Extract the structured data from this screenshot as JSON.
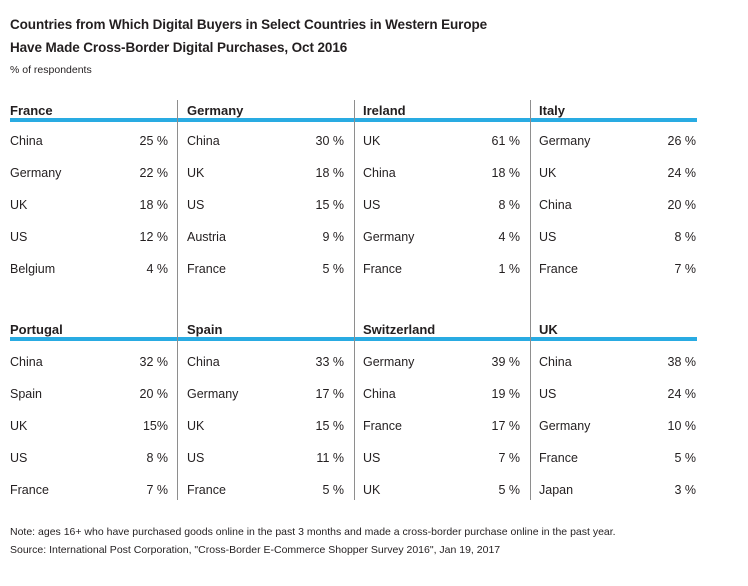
{
  "header": {
    "title_line1": "Countries from Which Digital Buyers in Select Countries in Western Europe",
    "title_line2": "Have Made Cross-Border Digital Purchases, Oct 2016",
    "subtitle": "% of respondents"
  },
  "colors": {
    "accent_blue": "#29abe2",
    "divider_gray": "#8e8e8e",
    "text": "#231f20"
  },
  "chart_data": {
    "type": "table",
    "title": "Countries from Which Digital Buyers in Select Countries in Western Europe Have Made Cross-Border Digital Purchases, Oct 2016",
    "unit": "% of respondents",
    "layout": "2 rows x 4 panels, blue rule under panel headers, gray vertical dividers between panels",
    "panels": [
      {
        "market": "France",
        "rows": [
          {
            "country": "China",
            "value": 25,
            "label": "25 %"
          },
          {
            "country": "Germany",
            "value": 22,
            "label": "22 %"
          },
          {
            "country": "UK",
            "value": 18,
            "label": "18 %"
          },
          {
            "country": "US",
            "value": 12,
            "label": "12 %"
          },
          {
            "country": "Belgium",
            "value": 4,
            "label": "4 %"
          }
        ]
      },
      {
        "market": "Germany",
        "rows": [
          {
            "country": "China",
            "value": 30,
            "label": "30 %"
          },
          {
            "country": "UK",
            "value": 18,
            "label": "18 %"
          },
          {
            "country": "US",
            "value": 15,
            "label": "15 %"
          },
          {
            "country": "Austria",
            "value": 9,
            "label": "9 %"
          },
          {
            "country": "France",
            "value": 5,
            "label": "5 %"
          }
        ]
      },
      {
        "market": "Ireland",
        "rows": [
          {
            "country": "UK",
            "value": 61,
            "label": "61 %"
          },
          {
            "country": "China",
            "value": 18,
            "label": "18 %"
          },
          {
            "country": "US",
            "value": 8,
            "label": "8 %"
          },
          {
            "country": "Germany",
            "value": 4,
            "label": "4 %"
          },
          {
            "country": "France",
            "value": 1,
            "label": "1 %"
          }
        ]
      },
      {
        "market": "Italy",
        "rows": [
          {
            "country": "Germany",
            "value": 26,
            "label": "26 %"
          },
          {
            "country": "UK",
            "value": 24,
            "label": "24 %"
          },
          {
            "country": "China",
            "value": 20,
            "label": "20 %"
          },
          {
            "country": "US",
            "value": 8,
            "label": "8 %"
          },
          {
            "country": "France",
            "value": 7,
            "label": "7 %"
          }
        ]
      },
      {
        "market": "Portugal",
        "rows": [
          {
            "country": "China",
            "value": 32,
            "label": "32 %"
          },
          {
            "country": "Spain",
            "value": 20,
            "label": "20 %"
          },
          {
            "country": "UK",
            "value": 15,
            "label": "15%"
          },
          {
            "country": "US",
            "value": 8,
            "label": "8 %"
          },
          {
            "country": "France",
            "value": 7,
            "label": "7 %"
          }
        ]
      },
      {
        "market": "Spain",
        "rows": [
          {
            "country": "China",
            "value": 33,
            "label": "33 %"
          },
          {
            "country": "Germany",
            "value": 17,
            "label": "17 %"
          },
          {
            "country": "UK",
            "value": 15,
            "label": "15 %"
          },
          {
            "country": "US",
            "value": 11,
            "label": "11 %"
          },
          {
            "country": "France",
            "value": 5,
            "label": "5 %"
          }
        ]
      },
      {
        "market": "Switzerland",
        "rows": [
          {
            "country": "Germany",
            "value": 39,
            "label": "39 %"
          },
          {
            "country": "China",
            "value": 19,
            "label": "19 %"
          },
          {
            "country": "France",
            "value": 17,
            "label": "17 %"
          },
          {
            "country": "US",
            "value": 7,
            "label": "7 %"
          },
          {
            "country": "UK",
            "value": 5,
            "label": "5 %"
          }
        ]
      },
      {
        "market": "UK",
        "rows": [
          {
            "country": "China",
            "value": 38,
            "label": "38 %"
          },
          {
            "country": "US",
            "value": 24,
            "label": "24 %"
          },
          {
            "country": "Germany",
            "value": 10,
            "label": "10 %"
          },
          {
            "country": "France",
            "value": 5,
            "label": "5 %"
          },
          {
            "country": "Japan",
            "value": 3,
            "label": "3 %"
          }
        ]
      }
    ]
  },
  "footer": {
    "note": "Note: ages 16+ who have purchased goods online in the past 3 months and made a cross-border purchase online in the past year.",
    "source": "Source: International Post Corporation, \"Cross-Border E-Commerce Shopper Survey 2016\", Jan 19, 2017"
  }
}
